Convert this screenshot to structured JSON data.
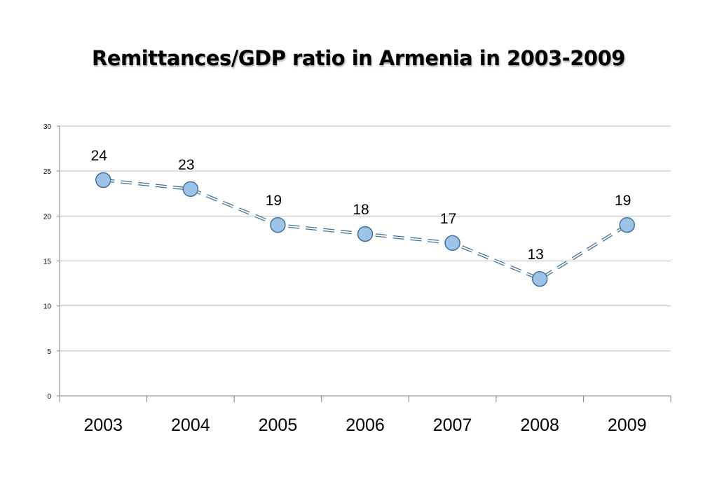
{
  "chart_data": {
    "type": "line",
    "title": "Remittances/GDP ratio in Armenia in 2003-2009",
    "xlabel": "",
    "ylabel": "",
    "categories": [
      "2003",
      "2004",
      "2005",
      "2006",
      "2007",
      "2008",
      "2009"
    ],
    "series": [
      {
        "values": [
          24,
          23,
          19,
          18,
          17,
          13,
          19
        ]
      }
    ],
    "data_labels": [
      "24",
      "23",
      "19",
      "18",
      "17",
      "13",
      "19"
    ],
    "ylim": [
      0,
      30
    ],
    "yticks": [
      "0",
      "5",
      "10",
      "15",
      "20",
      "25",
      "30"
    ],
    "grid": true,
    "legend": "none",
    "line_style": "dashed",
    "colors": {
      "marker_fill": "#9dc3e6",
      "marker_stroke": "#41719c",
      "line": "#5b9bd5",
      "grid": "#bfbfbf",
      "axis": "#808080"
    }
  }
}
